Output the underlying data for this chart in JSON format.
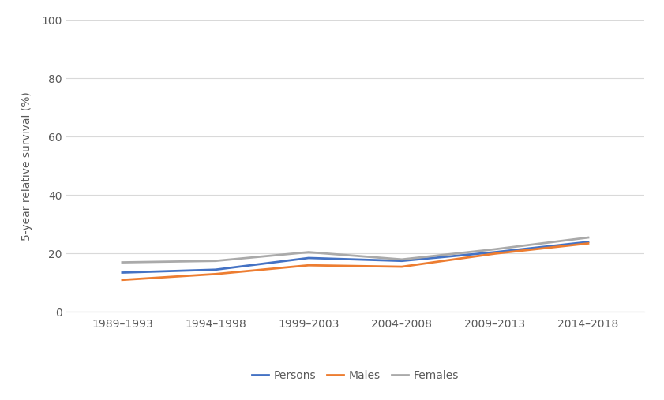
{
  "categories": [
    "1989–1993",
    "1994–1998",
    "1999–2003",
    "2004–2008",
    "2009–2013",
    "2014–2018"
  ],
  "persons": [
    13.5,
    14.5,
    18.5,
    17.5,
    20.5,
    24.0
  ],
  "males": [
    11.0,
    13.0,
    16.0,
    15.5,
    20.0,
    23.5
  ],
  "females": [
    17.0,
    17.5,
    20.5,
    18.0,
    21.5,
    25.5
  ],
  "persons_color": "#4472C4",
  "males_color": "#ED7D31",
  "females_color": "#AAAAAA",
  "ylabel": "5-year relative survival (%)",
  "ylim": [
    0,
    100
  ],
  "yticks": [
    0,
    20,
    40,
    60,
    80,
    100
  ],
  "legend_labels": [
    "Persons",
    "Males",
    "Females"
  ],
  "line_width": 2.0,
  "background_color": "#FFFFFF",
  "grid_color": "#D9D9D9",
  "tick_fontsize": 10,
  "ylabel_fontsize": 10,
  "legend_fontsize": 10
}
